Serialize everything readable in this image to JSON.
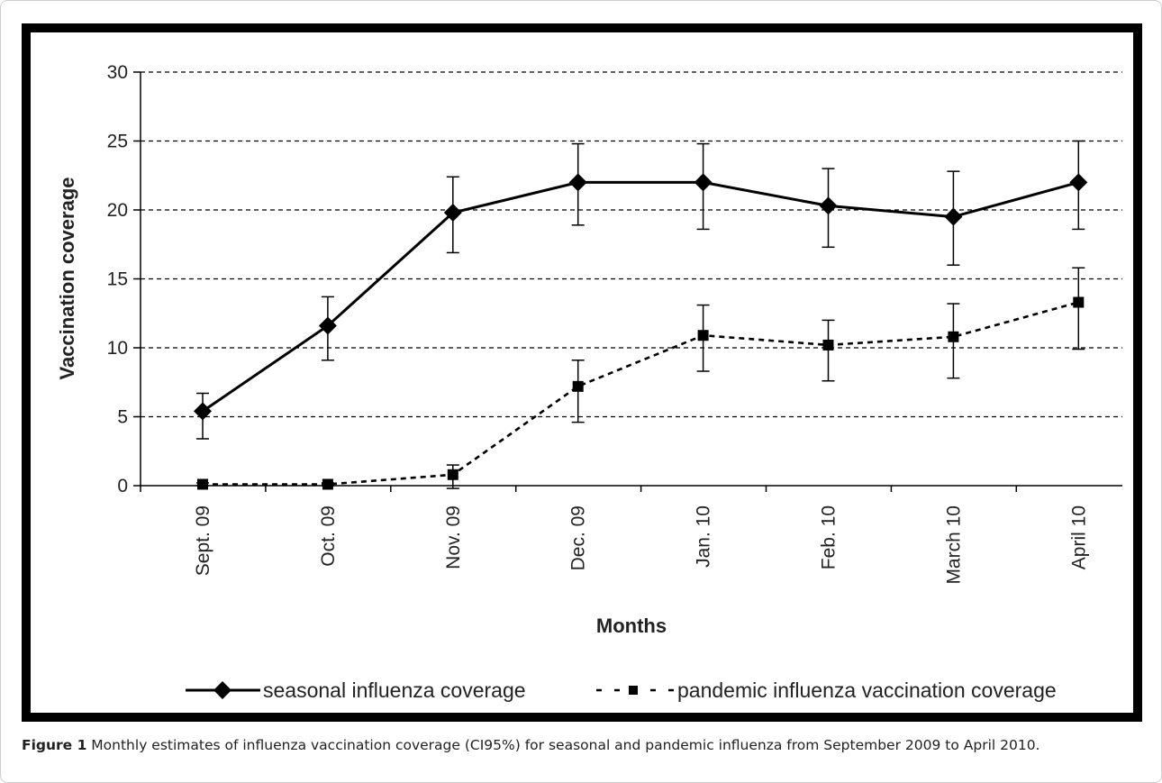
{
  "caption": {
    "figure_label": "Figure 1",
    "text": " Monthly estimates of influenza vaccination coverage (CI95%) for seasonal and pandemic influenza from September 2009 to April 2010."
  },
  "chart_data": {
    "type": "line",
    "title": "",
    "xlabel": "Months",
    "ylabel": "Vaccination coverage",
    "categories": [
      "Sept. 09",
      "Oct. 09",
      "Nov. 09",
      "Dec. 09",
      "Jan. 10",
      "Feb. 10",
      "March 10",
      "April 10"
    ],
    "ylim": [
      0,
      30
    ],
    "yticks": [
      0,
      5,
      10,
      15,
      20,
      25,
      30
    ],
    "grid": "horizontal dashed",
    "legend_position": "bottom",
    "series": [
      {
        "name": "seasonal influenza coverage",
        "style": "solid",
        "marker": "diamond",
        "color": "#000000",
        "values": [
          5.4,
          11.6,
          19.8,
          22.0,
          22.0,
          20.3,
          19.5,
          22.0
        ],
        "ci_low": [
          3.4,
          9.1,
          16.9,
          18.9,
          18.6,
          17.3,
          16.0,
          18.6
        ],
        "ci_high": [
          6.7,
          13.7,
          22.4,
          24.8,
          24.8,
          23.0,
          22.8,
          25.0
        ]
      },
      {
        "name": "pandemic influenza vaccination coverage",
        "style": "dashed",
        "marker": "square",
        "color": "#000000",
        "values": [
          0.1,
          0.1,
          0.8,
          7.2,
          10.9,
          10.2,
          10.8,
          13.3
        ],
        "ci_low": [
          0.0,
          0.0,
          -0.2,
          4.6,
          8.3,
          7.6,
          7.8,
          9.9
        ],
        "ci_high": [
          0.2,
          0.2,
          1.5,
          9.1,
          13.1,
          12.0,
          13.2,
          15.8
        ]
      }
    ]
  }
}
